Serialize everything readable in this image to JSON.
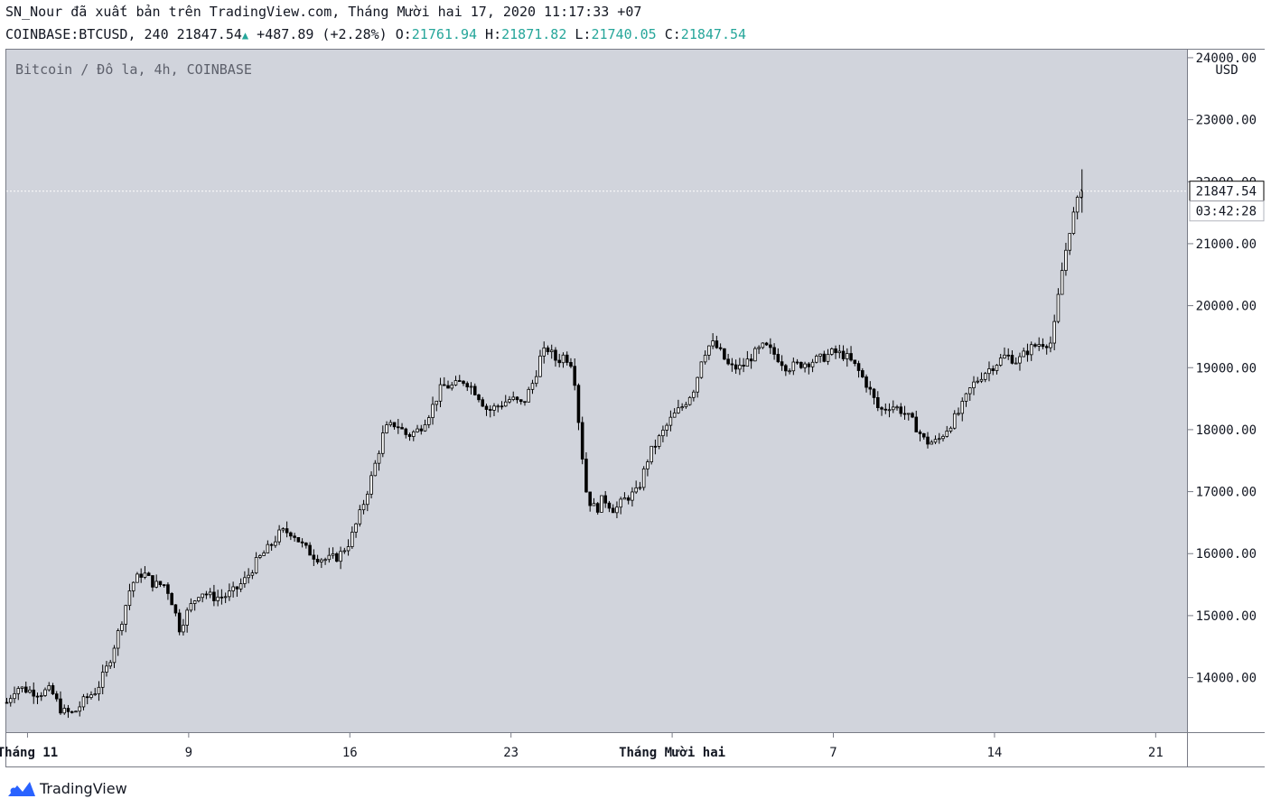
{
  "header": {
    "published_line": "SN_Nour đã xuất bản trên TradingView.com, Tháng Mười hai 17, 2020 11:17:33 +07",
    "symbol": "COINBASE:BTCUSD, 240",
    "last": "21847.54",
    "change": "+487.89 (+2.28%)",
    "o_label": "O:",
    "o_value": "21761.94",
    "h_label": "H:",
    "h_value": "21871.82",
    "l_label": "L:",
    "l_value": "21740.05",
    "c_label": "C:",
    "c_value": "21847.54"
  },
  "chart_title": "Bitcoin / Đô la, 4h, COINBASE",
  "footer_brand": "TradingView",
  "chart_data": {
    "type": "candlestick",
    "currency": "USD",
    "ylim": [
      13120,
      24130
    ],
    "y_ticks": [
      14000,
      15000,
      16000,
      17000,
      18000,
      19000,
      20000,
      21000,
      22000,
      23000,
      24000
    ],
    "y_tick_labels": [
      "14000.00",
      "15000.00",
      "16000.00",
      "17000.00",
      "18000.00",
      "19000.00",
      "20000.00",
      "21000.00",
      "22000.00",
      "23000.00",
      "24000.00"
    ],
    "x_ticks": [
      {
        "label": "Tháng 11",
        "day": 2
      },
      {
        "label": "9",
        "day": 9
      },
      {
        "label": "16",
        "day": 16
      },
      {
        "label": "23",
        "day": 23
      },
      {
        "label": "Tháng Mười hai",
        "day": 30
      },
      {
        "label": "7",
        "day": 37
      },
      {
        "label": "14",
        "day": 44
      },
      {
        "label": "21",
        "day": 51
      }
    ],
    "x_range_days": [
      1.08,
      52.36
    ],
    "close_path_daily": [
      [
        1.1,
        13600
      ],
      [
        1.5,
        13850
      ],
      [
        2,
        13800
      ],
      [
        2.5,
        13750
      ],
      [
        3,
        13800
      ],
      [
        3.5,
        13450
      ],
      [
        4,
        13420
      ],
      [
        4.5,
        13650
      ],
      [
        5,
        13800
      ],
      [
        5.5,
        14200
      ],
      [
        6,
        14800
      ],
      [
        6.5,
        15500
      ],
      [
        7,
        15700
      ],
      [
        7.5,
        15500
      ],
      [
        8,
        15500
      ],
      [
        8.3,
        15200
      ],
      [
        8.6,
        14800
      ],
      [
        9,
        15100
      ],
      [
        9.5,
        15400
      ],
      [
        10,
        15300
      ],
      [
        10.5,
        15300
      ],
      [
        11,
        15400
      ],
      [
        11.5,
        15600
      ],
      [
        12,
        15900
      ],
      [
        12.5,
        16100
      ],
      [
        13,
        16350
      ],
      [
        13.5,
        16350
      ],
      [
        14,
        16100
      ],
      [
        14.5,
        15950
      ],
      [
        15,
        15900
      ],
      [
        15.5,
        15950
      ],
      [
        16,
        16200
      ],
      [
        16.5,
        16700
      ],
      [
        17,
        17300
      ],
      [
        17.5,
        18000
      ],
      [
        18,
        18100
      ],
      [
        18.5,
        17900
      ],
      [
        19,
        18000
      ],
      [
        19.5,
        18300
      ],
      [
        20,
        18700
      ],
      [
        20.5,
        18700
      ],
      [
        21,
        18800
      ],
      [
        21.5,
        18600
      ],
      [
        22,
        18300
      ],
      [
        22.5,
        18400
      ],
      [
        23,
        18500
      ],
      [
        23.5,
        18400
      ],
      [
        24,
        18800
      ],
      [
        24.3,
        19200
      ],
      [
        24.6,
        19300
      ],
      [
        25,
        19100
      ],
      [
        25.3,
        19200
      ],
      [
        25.7,
        19050
      ],
      [
        26,
        17900
      ],
      [
        26.3,
        16900
      ],
      [
        26.7,
        16700
      ],
      [
        27,
        16900
      ],
      [
        27.5,
        16700
      ],
      [
        28,
        16900
      ],
      [
        28.5,
        17000
      ],
      [
        29,
        17600
      ],
      [
        29.5,
        17900
      ],
      [
        30,
        18200
      ],
      [
        30.5,
        18400
      ],
      [
        31,
        18700
      ],
      [
        31.3,
        19200
      ],
      [
        31.7,
        19400
      ],
      [
        32,
        19300
      ],
      [
        32.5,
        19000
      ],
      [
        33,
        19000
      ],
      [
        33.5,
        19200
      ],
      [
        34,
        19350
      ],
      [
        34.5,
        19200
      ],
      [
        35,
        19000
      ],
      [
        35.5,
        19050
      ],
      [
        36,
        19100
      ],
      [
        36.5,
        19150
      ],
      [
        37,
        19250
      ],
      [
        37.5,
        19200
      ],
      [
        38,
        19000
      ],
      [
        38.5,
        18700
      ],
      [
        39,
        18300
      ],
      [
        39.5,
        18400
      ],
      [
        40,
        18300
      ],
      [
        40.5,
        18100
      ],
      [
        41,
        17800
      ],
      [
        41.5,
        17800
      ],
      [
        42,
        18050
      ],
      [
        42.5,
        18300
      ],
      [
        43,
        18700
      ],
      [
        43.5,
        18900
      ],
      [
        44,
        19050
      ],
      [
        44.5,
        19200
      ],
      [
        45,
        19100
      ],
      [
        45.5,
        19300
      ],
      [
        46,
        19400
      ],
      [
        46.5,
        19400
      ],
      [
        46.9,
        20500
      ],
      [
        47.3,
        21300
      ],
      [
        47.7,
        21800
      ],
      [
        47.9,
        21848
      ]
    ],
    "last_price": 21847.54,
    "last_price_label": "21847.54",
    "countdown": "03:42:28",
    "high_marker": 22200,
    "colors": {
      "background": "#d1d4dc",
      "up": "#ffffff",
      "down": "#000000",
      "wick": "#000000",
      "accent": "#26a69a",
      "price_line": "#ffffff"
    }
  }
}
